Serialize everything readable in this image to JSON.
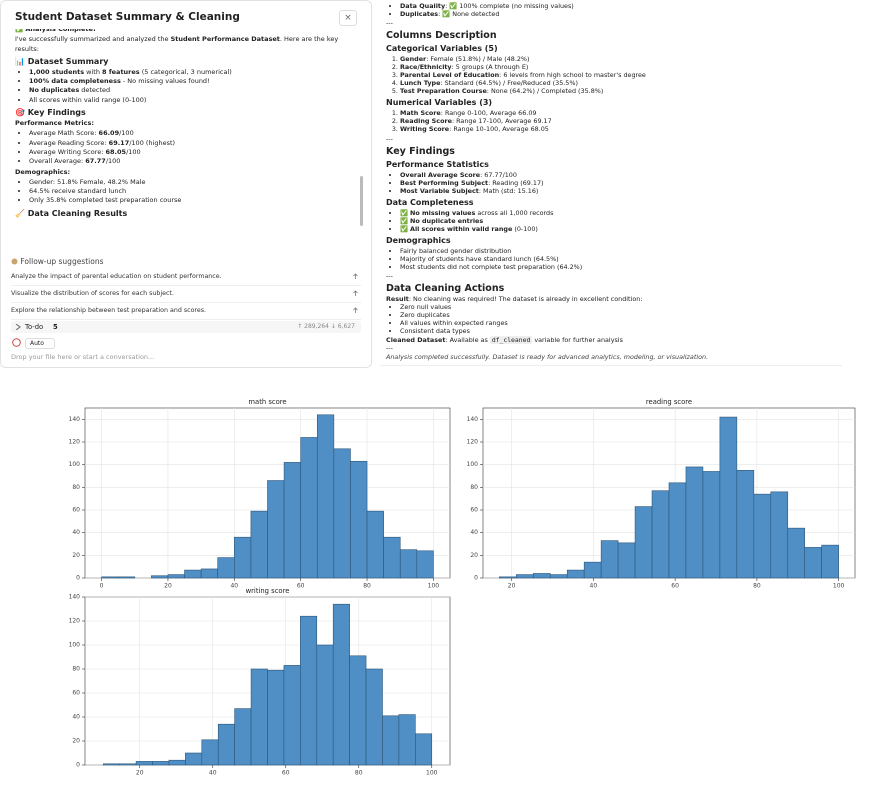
{
  "left_panel": {
    "title": "Student Dataset Summary & Cleaning",
    "close": "×",
    "blocks": [
      {
        "kind": "strong",
        "text": "✅ Analysis Complete!"
      },
      {
        "kind": "p",
        "text": [
          "I've successfully summarized and analyzed the ",
          {
            "b": "Student Performance Dataset"
          },
          ". Here are the key results:"
        ]
      },
      {
        "kind": "h3",
        "text": "📊 Dataset Summary"
      },
      {
        "kind": "ul",
        "items": [
          [
            {
              "b": "1,000 students"
            },
            " with ",
            {
              "b": "8 features"
            },
            " (5 categorical, 3 numerical)"
          ],
          [
            {
              "b": "100% data completeness"
            },
            " - No missing values found!"
          ],
          [
            {
              "b": "No duplicates"
            },
            " detected"
          ],
          "All scores within valid range (0-100)"
        ]
      },
      {
        "kind": "h3",
        "text": "🎯 Key Findings"
      },
      {
        "kind": "strong",
        "text": "Performance Metrics:"
      },
      {
        "kind": "ul",
        "items": [
          [
            "Average Math Score: ",
            {
              "b": "66.09"
            },
            "/100"
          ],
          [
            "Average Reading Score: ",
            {
              "b": "69.17"
            },
            "/100 (highest)"
          ],
          [
            "Average Writing Score: ",
            {
              "b": "68.05"
            },
            "/100"
          ],
          [
            "Overall Average: ",
            {
              "b": "67.77"
            },
            "/100"
          ]
        ]
      },
      {
        "kind": "strong",
        "text": "Demographics:"
      },
      {
        "kind": "ul",
        "items": [
          "Gender: 51.8% Female, 48.2% Male",
          "64.5% receive standard lunch",
          "Only 35.8% completed test preparation course"
        ]
      },
      {
        "kind": "h3",
        "text": "🧹 Data Cleaning Results"
      }
    ],
    "followup_title": "Follow-up suggestions",
    "suggestions": [
      "Analyze the impact of parental education on student performance.",
      "Visualize the distribution of scores for each subject.",
      "Explore the relationship between test preparation and scores."
    ],
    "todo": {
      "label": "To-do",
      "count": "5",
      "tokens_up": "↑ 289,264",
      "tokens_down": "↓ 6,627"
    },
    "mode": "Auto",
    "placeholder": "Drop your file here or start a conversation..."
  },
  "right_panel": {
    "blocks": [
      {
        "kind": "ul",
        "items": [
          [
            {
              "b": "Data Quality"
            },
            ": ✅ 100% complete (no missing values)"
          ],
          [
            {
              "b": "Duplicates"
            },
            ": ✅ None detected"
          ]
        ]
      },
      {
        "kind": "hr",
        "text": "---"
      },
      {
        "kind": "h2",
        "text": "Columns Description"
      },
      {
        "kind": "h3",
        "text": "Categorical Variables (5)"
      },
      {
        "kind": "ol",
        "items": [
          [
            {
              "b": "Gender"
            },
            ": Female (51.8%) / Male (48.2%)"
          ],
          [
            {
              "b": "Race/Ethnicity"
            },
            ": 5 groups (A through E)"
          ],
          [
            {
              "b": "Parental Level of Education"
            },
            ": 6 levels from high school to master's degree"
          ],
          [
            {
              "b": "Lunch Type"
            },
            ": Standard (64.5%) / Free/Reduced (35.5%)"
          ],
          [
            {
              "b": "Test Preparation Course"
            },
            ": None (64.2%) / Completed (35.8%)"
          ]
        ]
      },
      {
        "kind": "h3",
        "text": "Numerical Variables (3)"
      },
      {
        "kind": "ol",
        "items": [
          [
            {
              "b": "Math Score"
            },
            ": Range 0-100, Average 66.09"
          ],
          [
            {
              "b": "Reading Score"
            },
            ": Range 17-100, Average 69.17"
          ],
          [
            {
              "b": "Writing Score"
            },
            ": Range 10-100, Average 68.05"
          ]
        ]
      },
      {
        "kind": "hr",
        "text": "---"
      },
      {
        "kind": "h2",
        "text": "Key Findings"
      },
      {
        "kind": "h3",
        "text": "Performance Statistics"
      },
      {
        "kind": "ul",
        "items": [
          [
            {
              "b": "Overall Average Score"
            },
            ": 67.77/100"
          ],
          [
            {
              "b": "Best Performing Subject"
            },
            ": Reading (69.17)"
          ],
          [
            {
              "b": "Most Variable Subject"
            },
            ": Math (std: 15.16)"
          ]
        ]
      },
      {
        "kind": "h3",
        "text": "Data Completeness"
      },
      {
        "kind": "ul",
        "items": [
          [
            "✅ ",
            {
              "b": "No missing values"
            },
            " across all 1,000 records"
          ],
          [
            "✅ ",
            {
              "b": "No duplicate entries"
            }
          ],
          [
            "✅ ",
            {
              "b": "All scores within valid range"
            },
            " (0-100)"
          ]
        ]
      },
      {
        "kind": "h3",
        "text": "Demographics"
      },
      {
        "kind": "ul",
        "items": [
          "Fairly balanced gender distribution",
          "Majority of students have standard lunch (64.5%)",
          "Most students did not complete test preparation (64.2%)"
        ]
      },
      {
        "kind": "hr",
        "text": "---"
      },
      {
        "kind": "h2",
        "text": "Data Cleaning Actions"
      },
      {
        "kind": "p",
        "text": [
          {
            "b": "Result"
          },
          ": No cleaning was required! The dataset is already in excellent condition:"
        ]
      },
      {
        "kind": "ul",
        "items": [
          "Zero null values",
          "Zero duplicates",
          "All values within expected ranges",
          "Consistent data types"
        ]
      },
      {
        "kind": "p",
        "text": [
          {
            "b": "Cleaned Dataset"
          },
          ": Available as ",
          {
            "code": "df_cleaned"
          },
          " variable for further analysis"
        ]
      },
      {
        "kind": "hr",
        "text": "---"
      },
      {
        "kind": "em",
        "text": "Analysis completed successfully. Dataset is ready for advanced analytics, modeling, or visualization."
      }
    ]
  },
  "chart_data": [
    {
      "type": "histogram",
      "title": "math score",
      "color": "#4f8fc6",
      "grid": true,
      "bins": [
        0,
        5,
        10,
        15,
        20,
        25,
        30,
        35,
        40,
        45,
        50,
        55,
        60,
        65,
        70,
        75,
        80,
        85,
        90,
        95,
        100
      ],
      "values": [
        1,
        1,
        0,
        2,
        3,
        7,
        8,
        18,
        36,
        59,
        86,
        102,
        124,
        144,
        114,
        103,
        59,
        36,
        25,
        24
      ],
      "xlim": [
        -5,
        105
      ],
      "ylim": [
        0,
        150
      ],
      "xticks": [
        0,
        20,
        40,
        60,
        80,
        100
      ],
      "yticks": [
        0,
        20,
        40,
        60,
        80,
        100,
        120,
        140
      ]
    },
    {
      "type": "histogram",
      "title": "reading score",
      "color": "#4f8fc6",
      "grid": true,
      "bins": [
        17,
        21.15,
        25.3,
        29.45,
        33.6,
        37.75,
        41.9,
        46.05,
        50.2,
        54.35,
        58.5,
        62.65,
        66.8,
        70.95,
        75.1,
        79.25,
        83.4,
        87.55,
        91.7,
        95.85,
        100
      ],
      "values": [
        1,
        3,
        4,
        3,
        7,
        14,
        33,
        31,
        63,
        77,
        84,
        98,
        94,
        142,
        95,
        74,
        76,
        44,
        27,
        29
      ],
      "xlim": [
        13,
        104
      ],
      "ylim": [
        0,
        150
      ],
      "xticks": [
        20,
        40,
        60,
        80,
        100
      ],
      "yticks": [
        0,
        20,
        40,
        60,
        80,
        100,
        120,
        140
      ]
    },
    {
      "type": "histogram",
      "title": "writing score",
      "color": "#4f8fc6",
      "grid": true,
      "bins": [
        10,
        14.5,
        19,
        23.5,
        28,
        32.5,
        37,
        41.5,
        46,
        50.5,
        55,
        59.5,
        64,
        68.5,
        73,
        77.5,
        82,
        86.5,
        91,
        95.5,
        100
      ],
      "values": [
        1,
        1,
        3,
        3,
        4,
        10,
        21,
        34,
        47,
        80,
        79,
        83,
        124,
        100,
        134,
        91,
        80,
        41,
        42,
        26
      ],
      "xlim": [
        5,
        105
      ],
      "ylim": [
        0,
        140
      ],
      "xticks": [
        20,
        40,
        60,
        80,
        100
      ],
      "yticks": [
        0,
        20,
        40,
        60,
        80,
        100,
        120,
        140
      ]
    }
  ]
}
